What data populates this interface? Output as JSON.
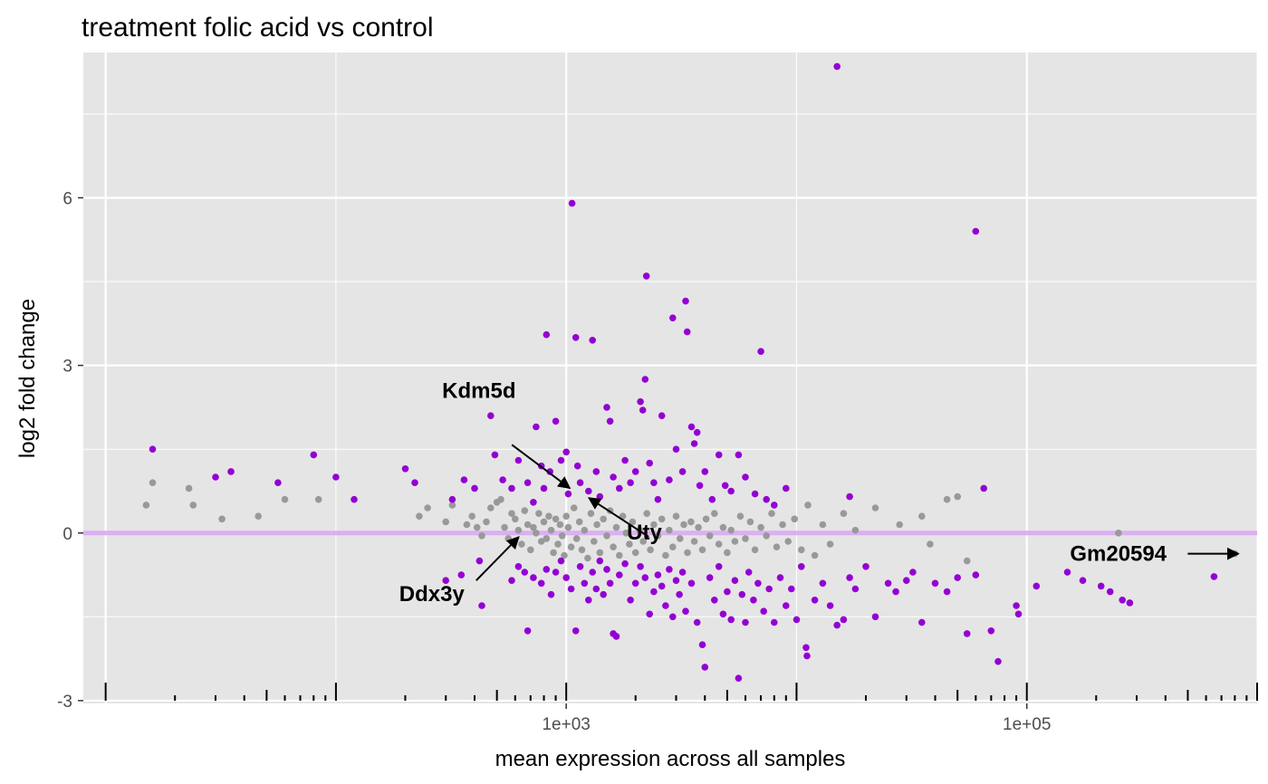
{
  "chart_data": {
    "type": "scatter",
    "title": "treatment folic acid vs control",
    "xlabel": "mean expression across all samples",
    "ylabel": "log2 fold change",
    "x_scale": "log10",
    "xlim": [
      8,
      1000000
    ],
    "ylim": [
      -3.05,
      8.6
    ],
    "x_ticks": [
      {
        "value": 1000,
        "label": "1e+03"
      },
      {
        "value": 100000,
        "label": "1e+05"
      }
    ],
    "y_ticks": [
      {
        "value": -3,
        "label": "-3"
      },
      {
        "value": 0,
        "label": "0"
      },
      {
        "value": 3,
        "label": "3"
      },
      {
        "value": 6,
        "label": "6"
      }
    ],
    "grid": true,
    "rug": "bottom",
    "reference_line": {
      "y": 0,
      "color": "#d9a8f2"
    },
    "colors": {
      "significant": "#9400d3",
      "not_significant": "#999999",
      "panel_bg": "#e5e5e5",
      "grid": "#ffffff"
    },
    "series": [
      {
        "color": "#999999",
        "points": [
          [
            15,
            0.5
          ],
          [
            16,
            0.9
          ],
          [
            23,
            0.8
          ],
          [
            24,
            0.5
          ],
          [
            32,
            0.25
          ],
          [
            46,
            0.3
          ],
          [
            60,
            0.6
          ],
          [
            84,
            0.6
          ],
          [
            230,
            0.3
          ],
          [
            250,
            0.45
          ],
          [
            300,
            0.2
          ],
          [
            320,
            0.5
          ],
          [
            370,
            0.15
          ],
          [
            390,
            0.3
          ],
          [
            410,
            0.1
          ],
          [
            430,
            -0.05
          ],
          [
            450,
            0.2
          ],
          [
            470,
            0.45
          ],
          [
            500,
            0.55
          ],
          [
            520,
            0.6
          ],
          [
            540,
            0.1
          ],
          [
            560,
            -0.1
          ],
          [
            580,
            0.35
          ],
          [
            600,
            0.25
          ],
          [
            620,
            0.05
          ],
          [
            640,
            -0.2
          ],
          [
            660,
            0.4
          ],
          [
            680,
            0.15
          ],
          [
            700,
            -0.3
          ],
          [
            720,
            0.1
          ],
          [
            740,
            0.0
          ],
          [
            760,
            0.35
          ],
          [
            780,
            -0.15
          ],
          [
            800,
            0.2
          ],
          [
            820,
            -0.1
          ],
          [
            840,
            0.3
          ],
          [
            860,
            0.05
          ],
          [
            880,
            -0.35
          ],
          [
            900,
            0.25
          ],
          [
            920,
            -0.2
          ],
          [
            940,
            0.15
          ],
          [
            960,
            -0.05
          ],
          [
            980,
            -0.4
          ],
          [
            1000,
            0.3
          ],
          [
            1020,
            0.1
          ],
          [
            1050,
            -0.25
          ],
          [
            1080,
            0.45
          ],
          [
            1110,
            -0.1
          ],
          [
            1140,
            0.2
          ],
          [
            1170,
            -0.3
          ],
          [
            1200,
            0.05
          ],
          [
            1240,
            -0.45
          ],
          [
            1280,
            0.35
          ],
          [
            1320,
            -0.15
          ],
          [
            1360,
            0.15
          ],
          [
            1400,
            -0.35
          ],
          [
            1450,
            0.25
          ],
          [
            1500,
            -0.05
          ],
          [
            1550,
            0.4
          ],
          [
            1600,
            -0.25
          ],
          [
            1650,
            0.1
          ],
          [
            1700,
            -0.4
          ],
          [
            1760,
            0.3
          ],
          [
            1820,
            0.0
          ],
          [
            1880,
            -0.2
          ],
          [
            1940,
            0.2
          ],
          [
            2000,
            -0.35
          ],
          [
            2080,
            0.05
          ],
          [
            2160,
            -0.15
          ],
          [
            2240,
            0.35
          ],
          [
            2320,
            -0.3
          ],
          [
            2400,
            0.15
          ],
          [
            2500,
            -0.05
          ],
          [
            2600,
            0.25
          ],
          [
            2700,
            -0.4
          ],
          [
            2800,
            0.05
          ],
          [
            2900,
            -0.25
          ],
          [
            3000,
            0.3
          ],
          [
            3120,
            -0.1
          ],
          [
            3240,
            0.15
          ],
          [
            3360,
            -0.35
          ],
          [
            3480,
            0.2
          ],
          [
            3600,
            -0.15
          ],
          [
            3750,
            0.1
          ],
          [
            3900,
            -0.3
          ],
          [
            4050,
            0.25
          ],
          [
            4200,
            -0.05
          ],
          [
            4400,
            0.35
          ],
          [
            4600,
            -0.2
          ],
          [
            4800,
            0.1
          ],
          [
            5000,
            -0.35
          ],
          [
            5200,
            0.05
          ],
          [
            5400,
            -0.15
          ],
          [
            5700,
            0.3
          ],
          [
            6000,
            -0.1
          ],
          [
            6300,
            0.2
          ],
          [
            6600,
            -0.3
          ],
          [
            7000,
            0.1
          ],
          [
            7400,
            -0.05
          ],
          [
            7800,
            0.35
          ],
          [
            8200,
            -0.25
          ],
          [
            8700,
            0.15
          ],
          [
            9200,
            -0.15
          ],
          [
            9800,
            0.25
          ],
          [
            10500,
            -0.3
          ],
          [
            11200,
            0.5
          ],
          [
            12000,
            -0.4
          ],
          [
            13000,
            0.15
          ],
          [
            14000,
            -0.2
          ],
          [
            16000,
            0.35
          ],
          [
            18000,
            0.05
          ],
          [
            22000,
            0.45
          ],
          [
            28000,
            0.15
          ],
          [
            35000,
            0.3
          ],
          [
            38000,
            -0.2
          ],
          [
            45000,
            0.6
          ],
          [
            50000,
            0.65
          ],
          [
            55000,
            -0.5
          ],
          [
            250000,
            0.0
          ],
          [
            800000,
            -0.37
          ]
        ]
      },
      {
        "color": "#9400d3",
        "points": [
          [
            16,
            1.5
          ],
          [
            30,
            1.0
          ],
          [
            35,
            1.1
          ],
          [
            56,
            0.9
          ],
          [
            80,
            1.4
          ],
          [
            100,
            1.0
          ],
          [
            120,
            0.6
          ],
          [
            200,
            1.15
          ],
          [
            220,
            0.9
          ],
          [
            320,
            0.6
          ],
          [
            360,
            0.95
          ],
          [
            400,
            0.8
          ],
          [
            470,
            2.1
          ],
          [
            490,
            1.4
          ],
          [
            530,
            0.95
          ],
          [
            580,
            0.8
          ],
          [
            620,
            1.3
          ],
          [
            680,
            0.9
          ],
          [
            720,
            0.55
          ],
          [
            740,
            1.9
          ],
          [
            780,
            1.2
          ],
          [
            800,
            0.8
          ],
          [
            820,
            3.55
          ],
          [
            850,
            1.1
          ],
          [
            900,
            2.0
          ],
          [
            950,
            1.3
          ],
          [
            1000,
            1.45
          ],
          [
            1020,
            0.7
          ],
          [
            1060,
            5.9
          ],
          [
            1100,
            3.5
          ],
          [
            1120,
            1.2
          ],
          [
            1150,
            0.9
          ],
          [
            1250,
            0.75
          ],
          [
            1300,
            3.45
          ],
          [
            1350,
            1.1
          ],
          [
            1400,
            0.65
          ],
          [
            1500,
            2.25
          ],
          [
            1550,
            2.0
          ],
          [
            1600,
            1.0
          ],
          [
            1700,
            0.8
          ],
          [
            1800,
            1.3
          ],
          [
            1900,
            0.9
          ],
          [
            2000,
            1.1
          ],
          [
            2100,
            2.35
          ],
          [
            2150,
            2.2
          ],
          [
            2200,
            2.75
          ],
          [
            2230,
            4.6
          ],
          [
            2300,
            1.25
          ],
          [
            2400,
            0.9
          ],
          [
            2500,
            0.6
          ],
          [
            2600,
            2.1
          ],
          [
            2800,
            0.95
          ],
          [
            2900,
            3.85
          ],
          [
            3000,
            1.5
          ],
          [
            3200,
            1.1
          ],
          [
            3300,
            4.15
          ],
          [
            3350,
            3.6
          ],
          [
            3500,
            1.9
          ],
          [
            3600,
            1.6
          ],
          [
            3700,
            1.8
          ],
          [
            3800,
            0.85
          ],
          [
            4000,
            1.1
          ],
          [
            4300,
            0.6
          ],
          [
            4600,
            1.4
          ],
          [
            4900,
            0.85
          ],
          [
            5200,
            0.75
          ],
          [
            5600,
            1.4
          ],
          [
            6000,
            1.0
          ],
          [
            6600,
            0.7
          ],
          [
            7000,
            3.25
          ],
          [
            7400,
            0.6
          ],
          [
            8000,
            0.5
          ],
          [
            9000,
            0.8
          ],
          [
            15000,
            8.35
          ],
          [
            17000,
            0.65
          ],
          [
            60000,
            5.4
          ],
          [
            65000,
            0.8
          ],
          [
            300,
            -0.85
          ],
          [
            350,
            -0.75
          ],
          [
            420,
            -0.5
          ],
          [
            430,
            -1.3
          ],
          [
            580,
            -0.85
          ],
          [
            620,
            -0.6
          ],
          [
            660,
            -0.7
          ],
          [
            680,
            -1.75
          ],
          [
            720,
            -0.8
          ],
          [
            780,
            -0.9
          ],
          [
            820,
            -0.65
          ],
          [
            860,
            -1.1
          ],
          [
            900,
            -0.7
          ],
          [
            950,
            -0.5
          ],
          [
            1000,
            -0.8
          ],
          [
            1050,
            -1.0
          ],
          [
            1100,
            -1.75
          ],
          [
            1150,
            -0.6
          ],
          [
            1200,
            -0.9
          ],
          [
            1250,
            -1.2
          ],
          [
            1300,
            -0.7
          ],
          [
            1350,
            -1.0
          ],
          [
            1400,
            -0.5
          ],
          [
            1450,
            -1.1
          ],
          [
            1500,
            -0.65
          ],
          [
            1550,
            -0.9
          ],
          [
            1600,
            -1.8
          ],
          [
            1650,
            -1.85
          ],
          [
            1700,
            -0.75
          ],
          [
            1800,
            -0.55
          ],
          [
            1900,
            -1.2
          ],
          [
            2000,
            -0.9
          ],
          [
            2100,
            -0.6
          ],
          [
            2200,
            -0.8
          ],
          [
            2300,
            -1.45
          ],
          [
            2400,
            -1.05
          ],
          [
            2500,
            -0.75
          ],
          [
            2600,
            -0.95
          ],
          [
            2700,
            -1.3
          ],
          [
            2800,
            -0.65
          ],
          [
            2900,
            -1.5
          ],
          [
            3000,
            -0.85
          ],
          [
            3100,
            -1.1
          ],
          [
            3200,
            -0.7
          ],
          [
            3300,
            -1.4
          ],
          [
            3500,
            -0.9
          ],
          [
            3700,
            -1.6
          ],
          [
            3900,
            -2.0
          ],
          [
            4000,
            -2.4
          ],
          [
            4200,
            -0.8
          ],
          [
            4400,
            -1.2
          ],
          [
            4600,
            -0.6
          ],
          [
            4800,
            -1.45
          ],
          [
            5000,
            -1.05
          ],
          [
            5200,
            -1.55
          ],
          [
            5400,
            -0.85
          ],
          [
            5600,
            -2.6
          ],
          [
            5800,
            -1.1
          ],
          [
            6000,
            -1.6
          ],
          [
            6200,
            -0.7
          ],
          [
            6500,
            -1.2
          ],
          [
            6800,
            -0.9
          ],
          [
            7200,
            -1.4
          ],
          [
            7600,
            -1.0
          ],
          [
            8000,
            -1.6
          ],
          [
            8500,
            -0.8
          ],
          [
            9000,
            -1.3
          ],
          [
            9500,
            -1.0
          ],
          [
            10000,
            -1.55
          ],
          [
            10500,
            -0.6
          ],
          [
            11000,
            -2.05
          ],
          [
            11100,
            -2.2
          ],
          [
            12000,
            -1.2
          ],
          [
            13000,
            -0.9
          ],
          [
            14000,
            -1.3
          ],
          [
            15000,
            -1.65
          ],
          [
            16000,
            -1.55
          ],
          [
            17000,
            -0.8
          ],
          [
            18000,
            -1.0
          ],
          [
            20000,
            -0.6
          ],
          [
            22000,
            -1.5
          ],
          [
            25000,
            -0.9
          ],
          [
            27000,
            -1.05
          ],
          [
            30000,
            -0.85
          ],
          [
            32000,
            -0.7
          ],
          [
            35000,
            -1.6
          ],
          [
            40000,
            -0.9
          ],
          [
            45000,
            -1.05
          ],
          [
            50000,
            -0.8
          ],
          [
            55000,
            -1.8
          ],
          [
            60000,
            -0.75
          ],
          [
            70000,
            -1.75
          ],
          [
            75000,
            -2.3
          ],
          [
            90000,
            -1.3
          ],
          [
            92000,
            -1.45
          ],
          [
            110000,
            -0.95
          ],
          [
            150000,
            -0.7
          ],
          [
            175000,
            -0.85
          ],
          [
            210000,
            -0.95
          ],
          [
            230000,
            -1.05
          ],
          [
            260000,
            -1.2
          ],
          [
            280000,
            -1.25
          ],
          [
            650000,
            -0.78
          ]
        ]
      }
    ],
    "annotations": [
      {
        "label": "Kdm5d",
        "x": 1000,
        "y": 0.85
      },
      {
        "label": "Uty",
        "x": 1300,
        "y": 0.58
      },
      {
        "label": "Ddx3y",
        "x": 600,
        "y": -0.12
      },
      {
        "label": "Gm20594",
        "x": 800000,
        "y": -0.37
      }
    ]
  }
}
